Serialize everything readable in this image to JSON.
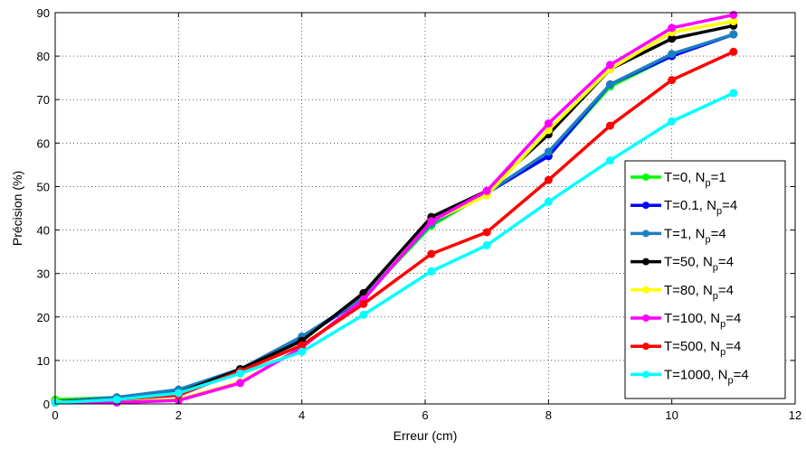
{
  "chart_data": {
    "type": "line",
    "xlabel": "Erreur (cm)",
    "ylabel": "Précision (%)",
    "xlim": [
      0,
      12
    ],
    "ylim": [
      0,
      90
    ],
    "xticks": [
      0,
      2,
      4,
      6,
      8,
      10,
      12
    ],
    "yticks": [
      0,
      10,
      20,
      30,
      40,
      50,
      60,
      70,
      80,
      90
    ],
    "grid": true,
    "legend_position": "bottom-right",
    "x": [
      0,
      1,
      2,
      3,
      4,
      5,
      6.1,
      7,
      8,
      9,
      10,
      11
    ],
    "series": [
      {
        "name": "T=0, N_p=1",
        "label_main": "T=0, N",
        "label_sub": "p",
        "label_end": "=1",
        "color": "#00ff00",
        "values": [
          1,
          1.5,
          3.2,
          8,
          15,
          24.5,
          41,
          48.5,
          57,
          73,
          80,
          85
        ]
      },
      {
        "name": "T=0.1, N_p=4",
        "label_main": "T=0.1, N",
        "label_sub": "p",
        "label_end": "=4",
        "color": "#0000ff",
        "values": [
          0.5,
          1.5,
          3,
          8,
          15,
          24.5,
          41.5,
          48.5,
          57,
          73.5,
          80,
          85
        ]
      },
      {
        "name": "T=1, N_p=4",
        "label_main": "T=1, N",
        "label_sub": "p",
        "label_end": "=4",
        "color": "#1e7fc0",
        "values": [
          0.5,
          1.5,
          3.3,
          8,
          15.5,
          24.5,
          41.5,
          48.5,
          58,
          73.5,
          80.5,
          85
        ]
      },
      {
        "name": "T=50, N_p=4",
        "label_main": "T=50, N",
        "label_sub": "p",
        "label_end": "=4",
        "color": "#000000",
        "values": [
          0.5,
          1,
          2.5,
          8,
          14.5,
          25.5,
          43,
          49,
          62,
          77,
          84,
          87
        ]
      },
      {
        "name": "T=80, N_p=4",
        "label_main": "T=80, N",
        "label_sub": "p",
        "label_end": "=4",
        "color": "#ffff00",
        "values": [
          0.5,
          0.5,
          1,
          5,
          13,
          24,
          42,
          48,
          63,
          77,
          85.5,
          88
        ]
      },
      {
        "name": "T=100, N_p=4",
        "label_main": "T=100, N",
        "label_sub": "p",
        "label_end": "=4",
        "color": "#ff00ff",
        "values": [
          0.3,
          0.3,
          0.8,
          4.8,
          13,
          24,
          42,
          49,
          64.5,
          78,
          86.5,
          89.5
        ]
      },
      {
        "name": "T=500, N_p=4",
        "label_main": "T=500, N",
        "label_sub": "p",
        "label_end": "=4",
        "color": "#ff0000",
        "values": [
          0.3,
          1,
          2,
          7.5,
          13.5,
          23,
          34.5,
          39.5,
          51.5,
          64,
          74.5,
          81
        ]
      },
      {
        "name": "T=1000, N_p=4",
        "label_main": "T=1000, N",
        "label_sub": "p",
        "label_end": "=4",
        "color": "#00ffff",
        "values": [
          0.3,
          1,
          2.5,
          7,
          12,
          20.5,
          30.5,
          36.5,
          46.5,
          56,
          65,
          71.5
        ]
      }
    ]
  }
}
